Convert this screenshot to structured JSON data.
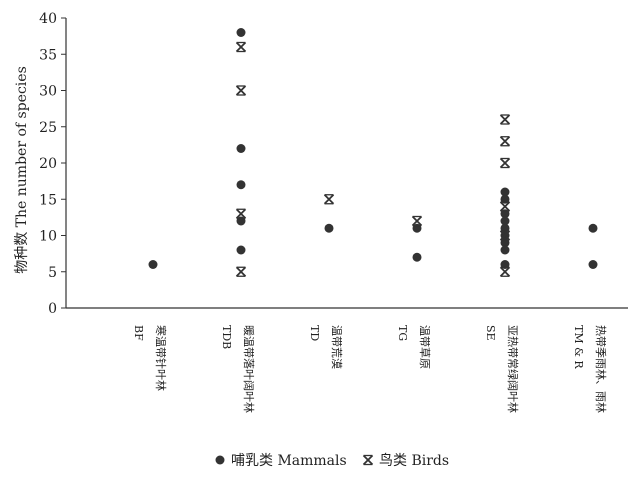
{
  "chart_data": {
    "type": "scatter",
    "ylabel": "物种数 The number of species",
    "ylim": [
      0,
      40
    ],
    "yticks": [
      0,
      5,
      10,
      15,
      20,
      25,
      30,
      35,
      40
    ],
    "categories": [
      {
        "code": "BF",
        "name": "寒温带针叶林"
      },
      {
        "code": "TDB",
        "name": "暖温带落叶阔叶林"
      },
      {
        "code": "TD",
        "name": "温带荒漠"
      },
      {
        "code": "TG",
        "name": "温带草原"
      },
      {
        "code": "SE",
        "name": "亚热带常绿阔叶林"
      },
      {
        "code": "TM & R",
        "name": "热带季雨林、雨林"
      }
    ],
    "series": [
      {
        "name": "哺乳类 Mammals",
        "marker": "circle",
        "points": [
          {
            "category": "BF",
            "value": 6
          },
          {
            "category": "TDB",
            "value": 38
          },
          {
            "category": "TDB",
            "value": 22
          },
          {
            "category": "TDB",
            "value": 17
          },
          {
            "category": "TDB",
            "value": 12
          },
          {
            "category": "TDB",
            "value": 8
          },
          {
            "category": "TD",
            "value": 11
          },
          {
            "category": "TG",
            "value": 11
          },
          {
            "category": "TG",
            "value": 7
          },
          {
            "category": "SE",
            "value": 16
          },
          {
            "category": "SE",
            "value": 15
          },
          {
            "category": "SE",
            "value": 13
          },
          {
            "category": "SE",
            "value": 12
          },
          {
            "category": "SE",
            "value": 11
          },
          {
            "category": "SE",
            "value": 10
          },
          {
            "category": "SE",
            "value": 9
          },
          {
            "category": "SE",
            "value": 8
          },
          {
            "category": "SE",
            "value": 6
          },
          {
            "category": "TM & R",
            "value": 11
          },
          {
            "category": "TM & R",
            "value": 6
          }
        ]
      },
      {
        "name": "鸟类 Birds",
        "marker": "asterisk",
        "points": [
          {
            "category": "TDB",
            "value": 36
          },
          {
            "category": "TDB",
            "value": 30
          },
          {
            "category": "TDB",
            "value": 13
          },
          {
            "category": "TDB",
            "value": 5
          },
          {
            "category": "TD",
            "value": 15
          },
          {
            "category": "TG",
            "value": 12
          },
          {
            "category": "SE",
            "value": 26
          },
          {
            "category": "SE",
            "value": 23
          },
          {
            "category": "SE",
            "value": 20
          },
          {
            "category": "SE",
            "value": 14
          },
          {
            "category": "SE",
            "value": 10
          },
          {
            "category": "SE",
            "value": 5
          }
        ]
      }
    ],
    "legend_position": "bottom",
    "grid": false
  }
}
